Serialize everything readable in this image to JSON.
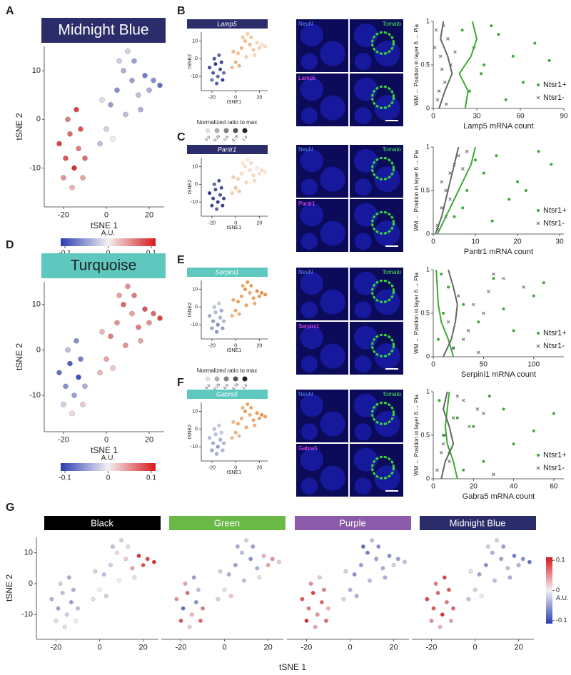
{
  "panel_letters": [
    "A",
    "B",
    "C",
    "D",
    "E",
    "F",
    "G"
  ],
  "cells": {
    "x": [
      -22,
      -19,
      -17,
      -15,
      -13,
      -20,
      -16,
      -12,
      -10,
      -18,
      -14,
      -11,
      -3,
      0,
      2,
      5,
      8,
      10,
      12,
      15,
      18,
      22,
      25,
      20,
      6,
      3,
      9,
      13,
      -2,
      16
    ],
    "y": [
      -5,
      -8,
      -3,
      -10,
      -6,
      -12,
      -14,
      -2,
      -8,
      0,
      2,
      -12,
      -5,
      -2,
      3,
      6,
      10,
      14,
      8,
      5,
      9,
      8,
      7,
      6,
      12,
      -4,
      1,
      12,
      4,
      2
    ]
  },
  "tsne": {
    "xlim": [
      -29,
      27
    ],
    "ylim": [
      -18,
      15
    ],
    "xticks": [
      -20,
      0,
      20
    ],
    "yticks": [
      -10,
      0,
      10
    ],
    "xlabel": "tSNE 1",
    "ylabel": "tSNE 2",
    "small_xlabel": "tSNE1",
    "small_ylabel": "tSNE2"
  },
  "colorbar": {
    "label": "A.U.",
    "lim": [
      -0.11,
      0.11
    ],
    "ticks": [
      -0.1,
      0,
      0.1
    ],
    "colors": [
      "#2a3eb1",
      "#f2f0f2",
      "#d7191c"
    ]
  },
  "modules": [
    {
      "title": "Midnight Blue",
      "color": "#2b2d6b",
      "text_color": "#ffffff",
      "values": [
        0.09,
        0.08,
        0.07,
        0.1,
        0.06,
        0.05,
        0.03,
        0.08,
        0.07,
        0.06,
        0.09,
        0.04,
        -0.03,
        -0.02,
        -0.05,
        -0.06,
        -0.04,
        -0.02,
        -0.05,
        -0.03,
        -0.07,
        -0.06,
        -0.08,
        -0.04,
        -0.02,
        0,
        -0.03,
        -0.05,
        -0.01,
        -0.04
      ]
    },
    {
      "title": "Turquoise",
      "color": "#5ec8bf",
      "text_color": "#222222",
      "values": [
        -0.08,
        -0.06,
        -0.09,
        -0.05,
        -0.1,
        -0.02,
        0.01,
        -0.07,
        -0.04,
        -0.03,
        -0.06,
        0.02,
        0.03,
        0.04,
        0.06,
        0.05,
        0.07,
        0.05,
        0.04,
        0.06,
        0.08,
        0.07,
        0.09,
        0.05,
        0.04,
        0.02,
        0.05,
        0.06,
        0.03,
        0.04
      ]
    }
  ],
  "size_legend": {
    "title": "Normalized ratio to max",
    "ticks": [
      {
        "value": 0,
        "label": "0.0"
      },
      0.25,
      0.5,
      0.75,
      {
        "value": 1,
        "label": "1.0"
      }
    ]
  },
  "image_labels": [
    "NeuN",
    "Tomato"
  ],
  "position_plot": {
    "ylabel": "WM ← Position in layer 6 → Pia",
    "ylim": [
      0,
      1
    ],
    "yticks": [
      0,
      0.5,
      1
    ]
  },
  "gene_panels": [
    {
      "gene": "Lamp5",
      "header_color": "#2b2d6b",
      "series": [
        {
          "color": "#2c3590",
          "values": [
            0.9,
            0.8,
            1.0,
            0.7,
            0.85,
            0.6,
            0.75,
            0.9,
            0.65,
            0.8,
            0.7,
            0.95
          ]
        },
        {
          "color": "#e8893a",
          "values": [
            0.5,
            0.6,
            0.4,
            0.55,
            0.45,
            0.3,
            0.5,
            0.35,
            0.2,
            0.1,
            0.15,
            0.25,
            0.4,
            0.6,
            0.3,
            0.35,
            0.5,
            0.2
          ]
        }
      ],
      "plot": {
        "xlabel": "Lamp5 mRNA count",
        "xlim": [
          0,
          90
        ],
        "xticks": [
          0,
          30,
          60,
          90
        ],
        "series": [
          {
            "name": "Ntsr1+",
            "color": "#3aaa35",
            "marker": "circle",
            "x": [
              20,
              28,
              35,
              45,
              55,
              62,
              70,
              25,
              40,
              80,
              33,
              50
            ],
            "y": [
              0.9,
              0.7,
              0.5,
              0.85,
              0.6,
              0.3,
              0.75,
              0.2,
              0.95,
              0.55,
              0.4,
              0.1
            ],
            "fit_x": [
              22,
              24,
              18,
              26,
              30,
              27
            ],
            "fit_y": [
              0,
              0.2,
              0.4,
              0.6,
              0.8,
              1
            ]
          },
          {
            "name": "Ntsr1-",
            "color": "#666666",
            "marker": "cross",
            "x": [
              2,
              5,
              8,
              3,
              10,
              6,
              1,
              12,
              4,
              7,
              15,
              9
            ],
            "y": [
              0.9,
              0.6,
              0.3,
              0.1,
              0.8,
              0.45,
              0.7,
              0.5,
              0.2,
              0.95,
              0.65,
              0.05
            ],
            "fit_x": [
              4,
              8,
              13,
              10,
              5,
              7
            ],
            "fit_y": [
              0,
              0.2,
              0.4,
              0.6,
              0.8,
              1
            ]
          }
        ]
      }
    },
    {
      "gene": "Pantr1",
      "header_color": "#2b2d6b",
      "series": [
        {
          "color": "#2c3590",
          "values": [
            1.0,
            0.9,
            0.85,
            0.95,
            0.8,
            0.9,
            0.75,
            0.85,
            0.9,
            0.7,
            0.8,
            0.95
          ]
        },
        {
          "color": "#e8893a",
          "values": [
            0.3,
            0.4,
            0.2,
            0.15,
            0.1,
            0.05,
            0.1,
            0.2,
            0.05,
            0.1,
            0.05,
            0.1,
            0.05,
            0.35,
            0.2,
            0.1,
            0.3,
            0.15
          ]
        }
      ],
      "plot": {
        "xlabel": "Pantr1 mRNA count",
        "xlim": [
          0,
          31
        ],
        "xticks": [
          0,
          10,
          20,
          30
        ],
        "series": [
          {
            "name": "Ntsr1+",
            "color": "#3aaa35",
            "marker": "circle",
            "x": [
              5,
              8,
              12,
              15,
              20,
              10,
              25,
              18,
              7,
              28,
              14,
              22
            ],
            "y": [
              0.2,
              0.5,
              0.7,
              0.9,
              0.6,
              0.85,
              0.95,
              0.4,
              0.3,
              0.8,
              0.15,
              0.5
            ],
            "fit_x": [
              1,
              3,
              5,
              7,
              9,
              10
            ],
            "fit_y": [
              0,
              0.2,
              0.4,
              0.6,
              0.8,
              1
            ]
          },
          {
            "name": "Ntsr1-",
            "color": "#666666",
            "marker": "cross",
            "x": [
              1,
              2,
              3,
              4,
              6,
              2,
              5,
              3,
              8,
              1,
              4,
              7
            ],
            "y": [
              0.1,
              0.3,
              0.5,
              0.7,
              0.9,
              0.6,
              0.8,
              0.2,
              0.95,
              0.05,
              0.4,
              0.75
            ],
            "fit_x": [
              0.5,
              2,
              3,
              4,
              5,
              6
            ],
            "fit_y": [
              0,
              0.2,
              0.4,
              0.6,
              0.8,
              1
            ]
          }
        ]
      }
    },
    {
      "gene": "Serpini1",
      "header_color": "#5ec8bf",
      "series": [
        {
          "color": "#2c3590",
          "values": [
            0.3,
            0.4,
            0.2,
            0.5,
            0.25,
            0.35,
            0.45,
            0.3,
            0.2,
            0.15,
            0.1,
            0.4
          ]
        },
        {
          "color": "#e8893a",
          "values": [
            0.6,
            0.7,
            0.8,
            0.75,
            0.9,
            0.85,
            0.7,
            0.8,
            0.95,
            1.0,
            0.9,
            0.85,
            0.7,
            0.6,
            0.75,
            0.8,
            0.65,
            0.7
          ]
        }
      ],
      "plot": {
        "xlabel": "Serpini1 mRNA count",
        "xlim": [
          0,
          130
        ],
        "xticks": [
          0,
          50,
          100
        ],
        "series": [
          {
            "name": "Ntsr1+",
            "color": "#3aaa35",
            "marker": "circle",
            "x": [
              5,
              10,
              15,
              30,
              60,
              100,
              80,
              20,
              8,
              45,
              110,
              70
            ],
            "y": [
              0.2,
              0.5,
              0.8,
              0.6,
              0.9,
              0.7,
              0.3,
              0.1,
              0.95,
              0.4,
              0.85,
              0.55
            ],
            "fit_x": [
              20,
              15,
              8,
              5,
              4,
              3
            ],
            "fit_y": [
              0,
              0.2,
              0.4,
              0.6,
              0.8,
              1
            ]
          },
          {
            "name": "Ntsr1-",
            "color": "#666666",
            "marker": "cross",
            "x": [
              20,
              35,
              50,
              25,
              70,
              40,
              90,
              30,
              60,
              45,
              15,
              55
            ],
            "y": [
              0.1,
              0.3,
              0.5,
              0.7,
              0.9,
              0.6,
              0.8,
              0.2,
              0.95,
              0.05,
              0.4,
              0.75
            ],
            "fit_x": [
              10,
              18,
              22,
              24,
              20,
              15
            ],
            "fit_y": [
              0,
              0.2,
              0.4,
              0.6,
              0.8,
              1
            ]
          }
        ]
      }
    },
    {
      "gene": "Gabra5",
      "header_color": "#5ec8bf",
      "series": [
        {
          "color": "#2c3590",
          "values": [
            0.2,
            0.3,
            0.15,
            0.4,
            0.25,
            0.35,
            0.3,
            0.1,
            0.2,
            0.15,
            0.1,
            0.25
          ]
        },
        {
          "color": "#e8893a",
          "values": [
            0.5,
            0.6,
            0.7,
            0.65,
            0.8,
            0.75,
            0.6,
            0.7,
            0.85,
            0.9,
            0.8,
            0.75,
            0.6,
            0.5,
            0.65,
            0.7,
            0.55,
            0.6
          ]
        }
      ],
      "plot": {
        "xlabel": "Gabra5 mRNA count",
        "xlim": [
          0,
          65
        ],
        "xticks": [
          0,
          20,
          40,
          60
        ],
        "series": [
          {
            "name": "Ntsr1+",
            "color": "#3aaa35",
            "marker": "circle",
            "x": [
              3,
              5,
              8,
              12,
              20,
              25,
              35,
              40,
              50,
              15,
              28,
              60
            ],
            "y": [
              0.9,
              0.5,
              0.3,
              0.7,
              0.6,
              0.2,
              0.8,
              0.4,
              0.55,
              0.1,
              0.95,
              0.75
            ],
            "fit_x": [
              12,
              10,
              7,
              6,
              7,
              8
            ],
            "fit_y": [
              0,
              0.2,
              0.4,
              0.6,
              0.8,
              1
            ]
          },
          {
            "name": "Ntsr1-",
            "color": "#666666",
            "marker": "cross",
            "x": [
              2,
              4,
              6,
              10,
              15,
              18,
              22,
              8,
              12,
              30,
              5,
              25
            ],
            "y": [
              0.1,
              0.3,
              0.5,
              0.7,
              0.9,
              0.6,
              0.8,
              0.2,
              0.95,
              0.05,
              0.4,
              0.75
            ],
            "fit_x": [
              4,
              6,
              10,
              8,
              5,
              7
            ],
            "fit_y": [
              0,
              0.2,
              0.4,
              0.6,
              0.8,
              1
            ]
          }
        ]
      }
    }
  ],
  "module_row": [
    {
      "title": "Black",
      "color": "#000000",
      "text_color": "#ffffff",
      "values": [
        -0.04,
        -0.05,
        -0.03,
        -0.02,
        -0.05,
        -0.01,
        0.01,
        -0.04,
        -0.03,
        -0.02,
        -0.04,
        0,
        -0.01,
        0,
        -0.03,
        -0.02,
        0.01,
        -0.02,
        0.02,
        0.04,
        0.1,
        0.09,
        0.1,
        0.08,
        -0.03,
        -0.02,
        0,
        -0.01,
        -0.02,
        0.01
      ]
    },
    {
      "title": "Green",
      "color": "#6ab946",
      "text_color": "#ffffff",
      "values": [
        0.05,
        -0.08,
        0.07,
        0.03,
        -0.06,
        0.08,
        0.02,
        -0.03,
        0.06,
        0.04,
        -0.05,
        0.07,
        -0.02,
        0.01,
        -0.04,
        -0.05,
        -0.03,
        -0.02,
        -0.06,
        -0.04,
        0.03,
        0.05,
        0.02,
        0.04,
        -0.04,
        0.02,
        -0.03,
        -0.05,
        -0.02,
        0.01
      ]
    },
    {
      "title": "Purple",
      "color": "#8b5aa8",
      "text_color": "#ffffff",
      "values": [
        0.08,
        0.06,
        0.09,
        0.05,
        0.07,
        0.1,
        0.04,
        0.06,
        0.03,
        0.05,
        0.02,
        0.07,
        -0.02,
        -0.04,
        -0.06,
        -0.05,
        -0.07,
        -0.03,
        -0.05,
        -0.04,
        -0.06,
        -0.05,
        -0.03,
        -0.02,
        -0.08,
        -0.04,
        -0.03,
        -0.06,
        -0.02,
        -0.04
      ]
    },
    {
      "title": "Midnight Blue",
      "color": "#2b2d6b",
      "text_color": "#ffffff",
      "values": [
        0.09,
        0.08,
        0.07,
        0.1,
        0.06,
        0.05,
        0.03,
        0.08,
        0.07,
        0.06,
        0.09,
        0.04,
        -0.03,
        -0.02,
        -0.05,
        -0.06,
        -0.04,
        -0.02,
        -0.05,
        -0.03,
        -0.07,
        -0.06,
        -0.08,
        -0.04,
        -0.02,
        0,
        -0.03,
        -0.05,
        -0.01,
        -0.04
      ]
    }
  ]
}
